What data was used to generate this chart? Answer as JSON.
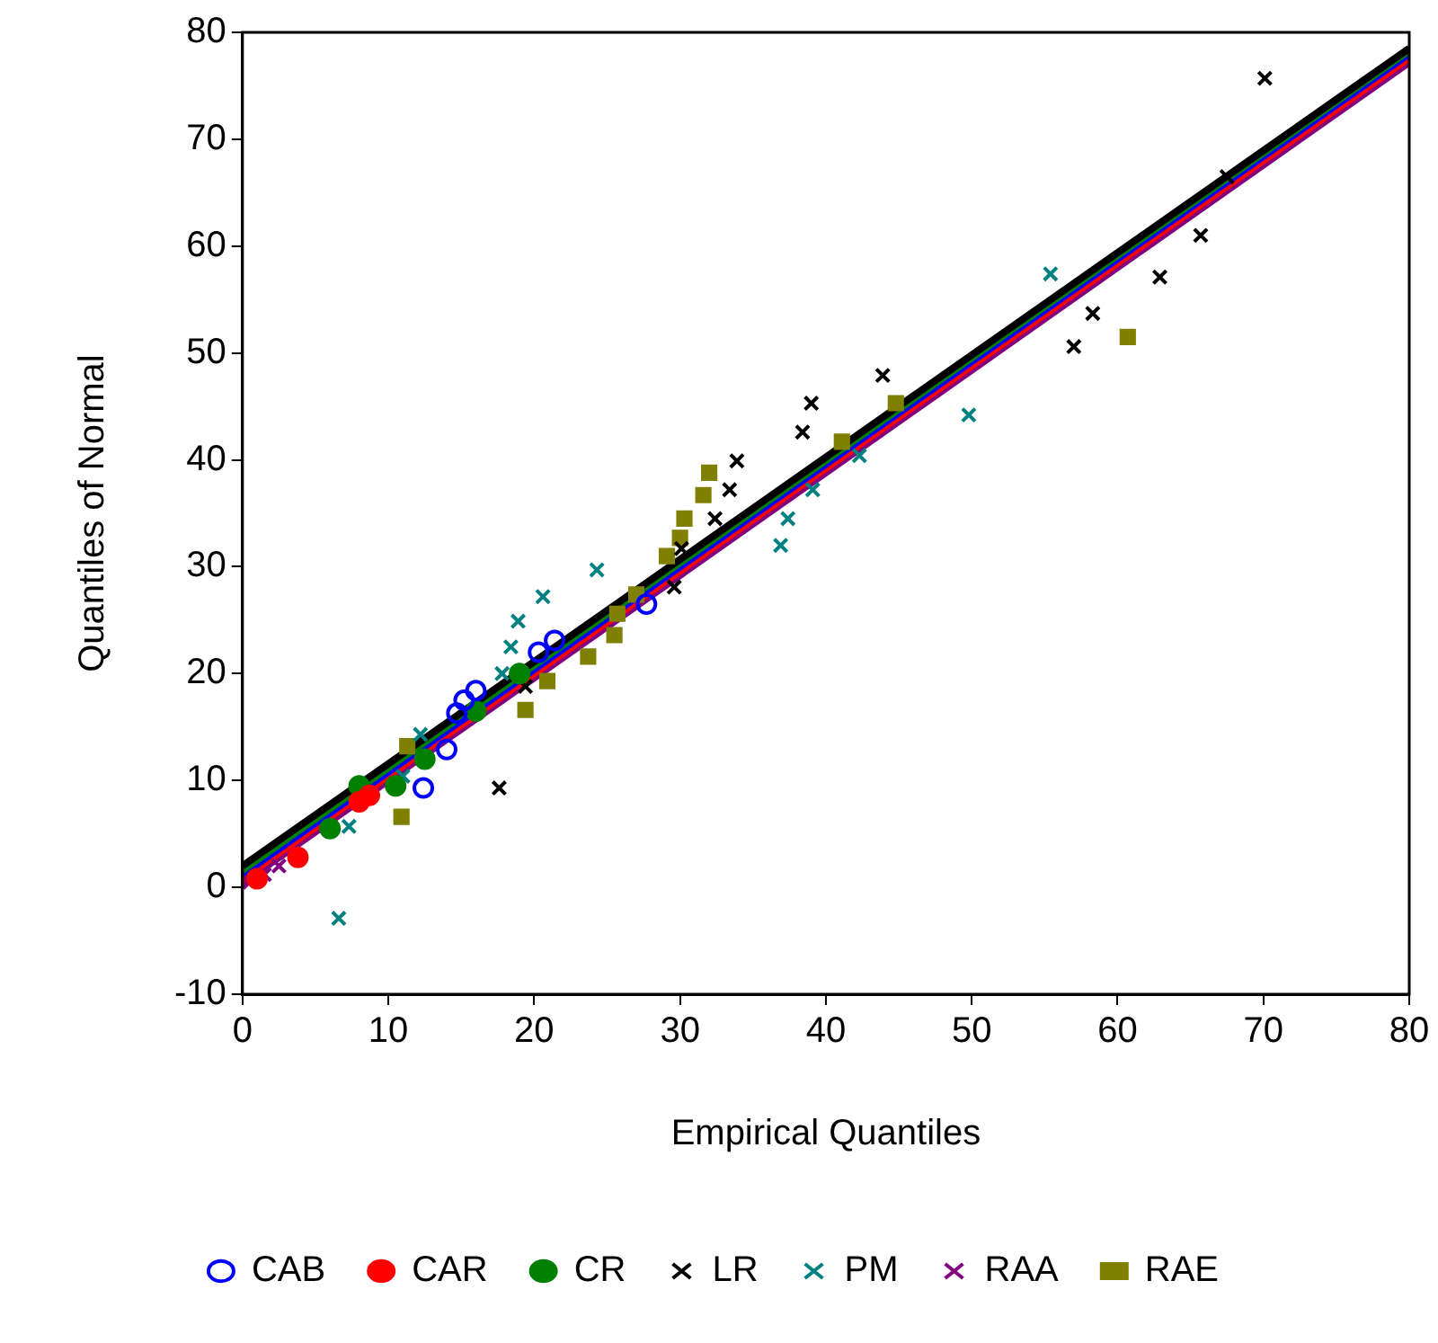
{
  "chart_data": {
    "type": "scatter",
    "xlabel": "Empirical Quantiles",
    "ylabel": "Quantiles of Normal",
    "xlim": [
      0,
      80
    ],
    "ylim": [
      -10,
      80
    ],
    "xticks": [
      0,
      10,
      20,
      30,
      40,
      50,
      60,
      70,
      80
    ],
    "yticks": [
      -10,
      0,
      10,
      20,
      30,
      40,
      50,
      60,
      70,
      80
    ],
    "grid": false,
    "legend": "bottom",
    "series": [
      {
        "type": "line",
        "marker": "none",
        "color": "#000000",
        "x": [
          0,
          80
        ],
        "values": [
          2,
          78.5
        ]
      },
      {
        "type": "line",
        "marker": "none",
        "color": "#008000",
        "x": [
          0,
          80
        ],
        "values": [
          1.6,
          78.3
        ]
      },
      {
        "type": "line",
        "marker": "none",
        "color": "#0000ff",
        "x": [
          0,
          80
        ],
        "values": [
          1.2,
          78
        ]
      },
      {
        "type": "line",
        "marker": "none",
        "color": "#ff0000",
        "x": [
          0,
          80
        ],
        "values": [
          0.8,
          77.6
        ]
      },
      {
        "type": "line",
        "marker": "none",
        "color": "#800080",
        "x": [
          0,
          80
        ],
        "values": [
          0.4,
          77.2
        ]
      },
      {
        "name": "CAB",
        "marker": "circle",
        "color": "#0000ff",
        "x": [
          12.4,
          14,
          14.7,
          15.2,
          16,
          20.3,
          21.4,
          27.7
        ],
        "values": [
          9.3,
          12.9,
          16.3,
          17.5,
          18.4,
          22,
          23.1,
          26.5
        ]
      },
      {
        "name": "CAR",
        "marker": "circle",
        "color": "#ff0000",
        "x": [
          1,
          3.8,
          8,
          8.7
        ],
        "values": [
          0.8,
          2.8,
          8,
          8.6
        ]
      },
      {
        "name": "CR",
        "marker": "circle",
        "color": "#008000",
        "x": [
          6,
          8,
          10.5,
          12.5,
          16,
          19
        ],
        "values": [
          5.5,
          9.5,
          9.5,
          12,
          16.5,
          20
        ]
      },
      {
        "name": "LR",
        "marker": "cross",
        "color": "#000000",
        "x": [
          17.6,
          19.4,
          29.6,
          30.1,
          32.4,
          33.4,
          33.9,
          38.4,
          39,
          43.9,
          57,
          58.3,
          62.9,
          65.7,
          67.5,
          70.1
        ],
        "values": [
          9.3,
          18.8,
          28.1,
          31.7,
          34.5,
          37.2,
          39.9,
          42.6,
          45.3,
          47.9,
          50.6,
          53.7,
          57.1,
          61,
          66.5,
          75.7
        ]
      },
      {
        "name": "PM",
        "marker": "cross",
        "color": "#008080",
        "x": [
          6.6,
          7.3,
          11,
          12.2,
          17.8,
          18.4,
          18.9,
          20.6,
          24.3,
          36.9,
          37.4,
          39.1,
          42.3,
          49.8,
          55.4
        ],
        "values": [
          -2.9,
          5.7,
          10.4,
          14.3,
          20,
          22.5,
          24.9,
          27.2,
          29.7,
          32,
          34.5,
          37.2,
          40.4,
          44.2,
          57.4
        ]
      },
      {
        "name": "RAA",
        "marker": "cross",
        "color": "#800080",
        "x": [
          0.5,
          1.5,
          2.5
        ],
        "values": [
          0.5,
          1.2,
          2
        ]
      },
      {
        "name": "RAE",
        "marker": "square",
        "color": "#808000",
        "x": [
          10.9,
          11.3,
          19.4,
          20.9,
          23.7,
          25.5,
          25.7,
          27,
          29.1,
          30,
          30.3,
          31.6,
          32,
          41.1,
          44.8,
          60.7
        ],
        "values": [
          6.6,
          13.2,
          16.6,
          19.3,
          21.6,
          23.6,
          25.6,
          27.4,
          31,
          32.7,
          34.5,
          36.7,
          38.8,
          41.7,
          45.3,
          51.5
        ]
      }
    ]
  }
}
